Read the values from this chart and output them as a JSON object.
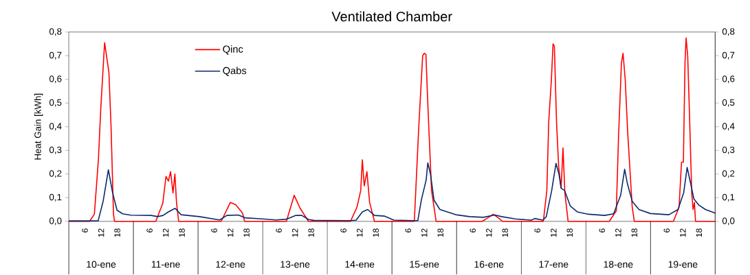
{
  "chart_data": {
    "type": "line",
    "title": "Ventilated Chamber",
    "ylabel": "Heat Gain [kWh]",
    "xlim": [
      "--01-10T00:00",
      "--01-20T00:00"
    ],
    "xticks": [
      {
        "value": "--01-10T06:00",
        "label": "6"
      },
      {
        "value": "--01-10T12:00",
        "label": "12"
      },
      {
        "value": "--01-10T18:00",
        "label": "18"
      },
      {
        "value": "--01-11T06:00",
        "label": "6"
      },
      {
        "value": "--01-11T12:00",
        "label": "12"
      },
      {
        "value": "--01-11T18:00",
        "label": "18"
      },
      {
        "value": "--01-12T06:00",
        "label": "6"
      },
      {
        "value": "--01-12T12:00",
        "label": "12"
      },
      {
        "value": "--01-12T18:00",
        "label": "18"
      },
      {
        "value": "--01-13T06:00",
        "label": "6"
      },
      {
        "value": "--01-13T12:00",
        "label": "12"
      },
      {
        "value": "--01-13T18:00",
        "label": "18"
      },
      {
        "value": "--01-14T06:00",
        "label": "6"
      },
      {
        "value": "--01-14T12:00",
        "label": "12"
      },
      {
        "value": "--01-14T18:00",
        "label": "18"
      },
      {
        "value": "--01-15T06:00",
        "label": "6"
      },
      {
        "value": "--01-15T12:00",
        "label": "12"
      },
      {
        "value": "--01-15T18:00",
        "label": "18"
      },
      {
        "value": "--01-16T06:00",
        "label": "6"
      },
      {
        "value": "--01-16T12:00",
        "label": "12"
      },
      {
        "value": "--01-16T18:00",
        "label": "18"
      },
      {
        "value": "--01-17T06:00",
        "label": "6"
      },
      {
        "value": "--01-17T12:00",
        "label": "12"
      },
      {
        "value": "--01-17T18:00",
        "label": "18"
      },
      {
        "value": "--01-18T06:00",
        "label": "6"
      },
      {
        "value": "--01-18T12:00",
        "label": "12"
      },
      {
        "value": "--01-18T18:00",
        "label": "18"
      },
      {
        "value": "--01-19T06:00",
        "label": "6"
      },
      {
        "value": "--01-19T12:00",
        "label": "12"
      },
      {
        "value": "--01-19T18:00",
        "label": "18"
      }
    ],
    "ylim": [
      0,
      0.8
    ],
    "yticks": [
      {
        "value": 0,
        "label": "0,0"
      },
      {
        "value": 0.1,
        "label": "0,1"
      },
      {
        "value": 0.2,
        "label": "0,2"
      },
      {
        "value": 0.3,
        "label": "0,3"
      },
      {
        "value": 0.4,
        "label": "0,4"
      },
      {
        "value": 0.5,
        "label": "0,5"
      },
      {
        "value": 0.6,
        "label": "0,6"
      },
      {
        "value": 0.7,
        "label": "0,7"
      },
      {
        "value": 0.8,
        "label": "0,8"
      }
    ],
    "y2lim": [
      0,
      0.8
    ],
    "y2ticks": [
      {
        "value": 0,
        "label": "0,0"
      },
      {
        "value": 0.1,
        "label": "0,1"
      },
      {
        "value": 0.2,
        "label": "0,2"
      },
      {
        "value": 0.3,
        "label": "0,3"
      },
      {
        "value": 0.4,
        "label": "0,4"
      },
      {
        "value": 0.5,
        "label": "0,5"
      },
      {
        "value": 0.6,
        "label": "0,6"
      },
      {
        "value": 0.7,
        "label": "0,7"
      },
      {
        "value": 0.8,
        "label": "0,8"
      }
    ],
    "annotations": [
      "10-ene",
      "11-ene",
      "12-ene",
      "13-ene",
      "14-ene",
      "15-ene",
      "16-ene",
      "17-ene",
      "18-ene",
      "19-ene"
    ],
    "legend": "top left",
    "grid": false,
    "marker": "none",
    "line_style": "solid",
    "series": [
      {
        "name": "Qinc",
        "color": "#ff0000",
        "x": [
          "--01-10T00:00",
          "--01-10T07:42",
          "--01-10T09:30",
          "--01-10T11:00",
          "--01-10T11:54",
          "--01-10T13:18",
          "--01-10T14:54",
          "--01-10T15:42",
          "--01-10T16:36",
          "--01-10T17:00",
          "--01-11T08:18",
          "--01-11T10:54",
          "--01-11T12:06",
          "--01-11T13:00",
          "--01-11T13:48",
          "--01-11T14:42",
          "--01-11T15:24",
          "--01-11T16:00",
          "--01-11T16:48",
          "--01-12T08:36",
          "--01-12T12:00",
          "--01-12T14:00",
          "--01-12T16:30",
          "--01-12T17:18",
          "--01-13T08:48",
          "--01-13T11:42",
          "--01-13T13:54",
          "--01-13T17:00",
          "--01-14T08:36",
          "--01-14T11:00",
          "--01-14T12:24",
          "--01-14T13:00",
          "--01-14T13:42",
          "--01-14T14:42",
          "--01-14T15:42",
          "--01-14T17:30",
          "--01-15T08:18",
          "--01-15T10:00",
          "--01-15T11:24",
          "--01-15T12:00",
          "--01-15T12:36",
          "--01-15T13:24",
          "--01-15T14:42",
          "--01-15T16:24",
          "--01-16T09:30",
          "--01-16T11:12",
          "--01-16T13:36",
          "--01-16T15:48",
          "--01-16T17:00",
          "--01-17T08:12",
          "--01-17T09:30",
          "--01-17T10:12",
          "--01-17T11:12",
          "--01-17T11:48",
          "--01-17T12:18",
          "--01-17T13:06",
          "--01-17T13:54",
          "--01-17T14:48",
          "--01-17T15:30",
          "--01-17T16:12",
          "--01-17T17:24",
          "--01-18T08:42",
          "--01-18T11:18",
          "--01-18T12:06",
          "--01-18T13:12",
          "--01-18T13:48",
          "--01-18T14:36",
          "--01-18T15:30",
          "--01-18T17:12",
          "--01-18T18:00",
          "--01-19T08:30",
          "--01-19T10:36",
          "--01-19T11:30",
          "--01-19T12:12",
          "--01-19T12:48",
          "--01-19T13:12",
          "--01-19T13:48",
          "--01-19T14:30",
          "--01-19T15:18",
          "--01-19T15:48",
          "--01-19T16:18",
          "--01-19T16:42",
          "--01-20T00:00"
        ],
        "values": [
          0,
          0,
          0.03,
          0.26,
          0.48,
          0.755,
          0.63,
          0.4,
          0.03,
          0,
          0,
          0.076,
          0.19,
          0.17,
          0.21,
          0.12,
          0.2,
          0.08,
          0,
          0,
          0.08,
          0.07,
          0.035,
          0,
          0,
          0.11,
          0.055,
          0,
          0,
          0.06,
          0.13,
          0.26,
          0.15,
          0.21,
          0.08,
          0,
          0,
          0.41,
          0.7,
          0.71,
          0.705,
          0.47,
          0.13,
          0,
          0,
          0.012,
          0.03,
          0.012,
          0,
          0,
          0.13,
          0.42,
          0.6,
          0.75,
          0.74,
          0.42,
          0.23,
          0.14,
          0.31,
          0.12,
          0,
          0,
          0.045,
          0.35,
          0.67,
          0.71,
          0.6,
          0.38,
          0.06,
          0,
          0,
          0.06,
          0.25,
          0.25,
          0.67,
          0.775,
          0.7,
          0.44,
          0.12,
          0.05,
          0.08,
          0,
          0
        ]
      },
      {
        "name": "Qabs",
        "color": "#0a2a6e",
        "x": [
          "--01-10T00:00",
          "--01-10T10:54",
          "--01-10T12:48",
          "--01-10T14:42",
          "--01-10T16:12",
          "--01-10T17:54",
          "--01-10T20:00",
          "--01-10T23:00",
          "--01-11T06:36",
          "--01-11T09:00",
          "--01-11T11:00",
          "--01-11T13:00",
          "--01-11T15:30",
          "--01-11T17:42",
          "--01-12T00:30",
          "--01-12T08:00",
          "--01-12T10:42",
          "--01-12T14:54",
          "--01-12T17:30",
          "--01-13T00:00",
          "--01-13T05:00",
          "--01-13T08:48",
          "--01-13T12:12",
          "--01-13T14:30",
          "--01-13T17:00",
          "--01-13T19:00",
          "--01-14T08:36",
          "--01-14T10:42",
          "--01-14T13:00",
          "--01-14T15:00",
          "--01-14T17:30",
          "--01-14T21:18",
          "--01-15T00:42",
          "--01-15T08:18",
          "--01-15T09:36",
          "--01-15T10:54",
          "--01-15T12:42",
          "--01-15T13:18",
          "--01-15T14:18",
          "--01-15T15:36",
          "--01-15T17:48",
          "--01-15T23:42",
          "--01-16T04:48",
          "--01-16T09:54",
          "--01-16T14:12",
          "--01-16T16:42",
          "--01-16T21:48",
          "--01-17T03:48",
          "--01-17T05:00",
          "--01-17T08:00",
          "--01-17T09:18",
          "--01-17T11:18",
          "--01-17T12:54",
          "--01-17T14:00",
          "--01-17T14:48",
          "--01-17T16:06",
          "--01-17T18:12",
          "--01-17T20:48",
          "--01-18T01:00",
          "--01-18T07:00",
          "--01-18T10:18",
          "--01-18T12:54",
          "--01-18T14:24",
          "--01-18T15:24",
          "--01-18T17:12",
          "--01-18T19:42",
          "--01-19T00:00",
          "--01-19T06:48",
          "--01-19T10:12",
          "--01-19T12:18",
          "--01-19T13:36",
          "--01-19T14:54",
          "--01-19T16:06",
          "--01-19T17:48",
          "--01-19T20:24",
          "--01-20T00:00"
        ],
        "values": [
          0.002,
          0.002,
          0.087,
          0.218,
          0.125,
          0.047,
          0.032,
          0.026,
          0.025,
          0.02,
          0.025,
          0.04,
          0.055,
          0.028,
          0.02,
          0.006,
          0.025,
          0.027,
          0.015,
          0.01,
          0.006,
          0.009,
          0.025,
          0.025,
          0.008,
          0.004,
          0.003,
          0.005,
          0.04,
          0.05,
          0.025,
          0.022,
          0.005,
          0.003,
          0.003,
          0.09,
          0.175,
          0.247,
          0.2,
          0.09,
          0.05,
          0.028,
          0.02,
          0.017,
          0.027,
          0.02,
          0.01,
          0.005,
          0.012,
          0.005,
          0.02,
          0.13,
          0.245,
          0.2,
          0.14,
          0.13,
          0.065,
          0.04,
          0.03,
          0.025,
          0.032,
          0.11,
          0.22,
          0.16,
          0.085,
          0.05,
          0.033,
          0.028,
          0.05,
          0.12,
          0.228,
          0.16,
          0.095,
          0.07,
          0.05,
          0.035
        ]
      }
    ]
  }
}
